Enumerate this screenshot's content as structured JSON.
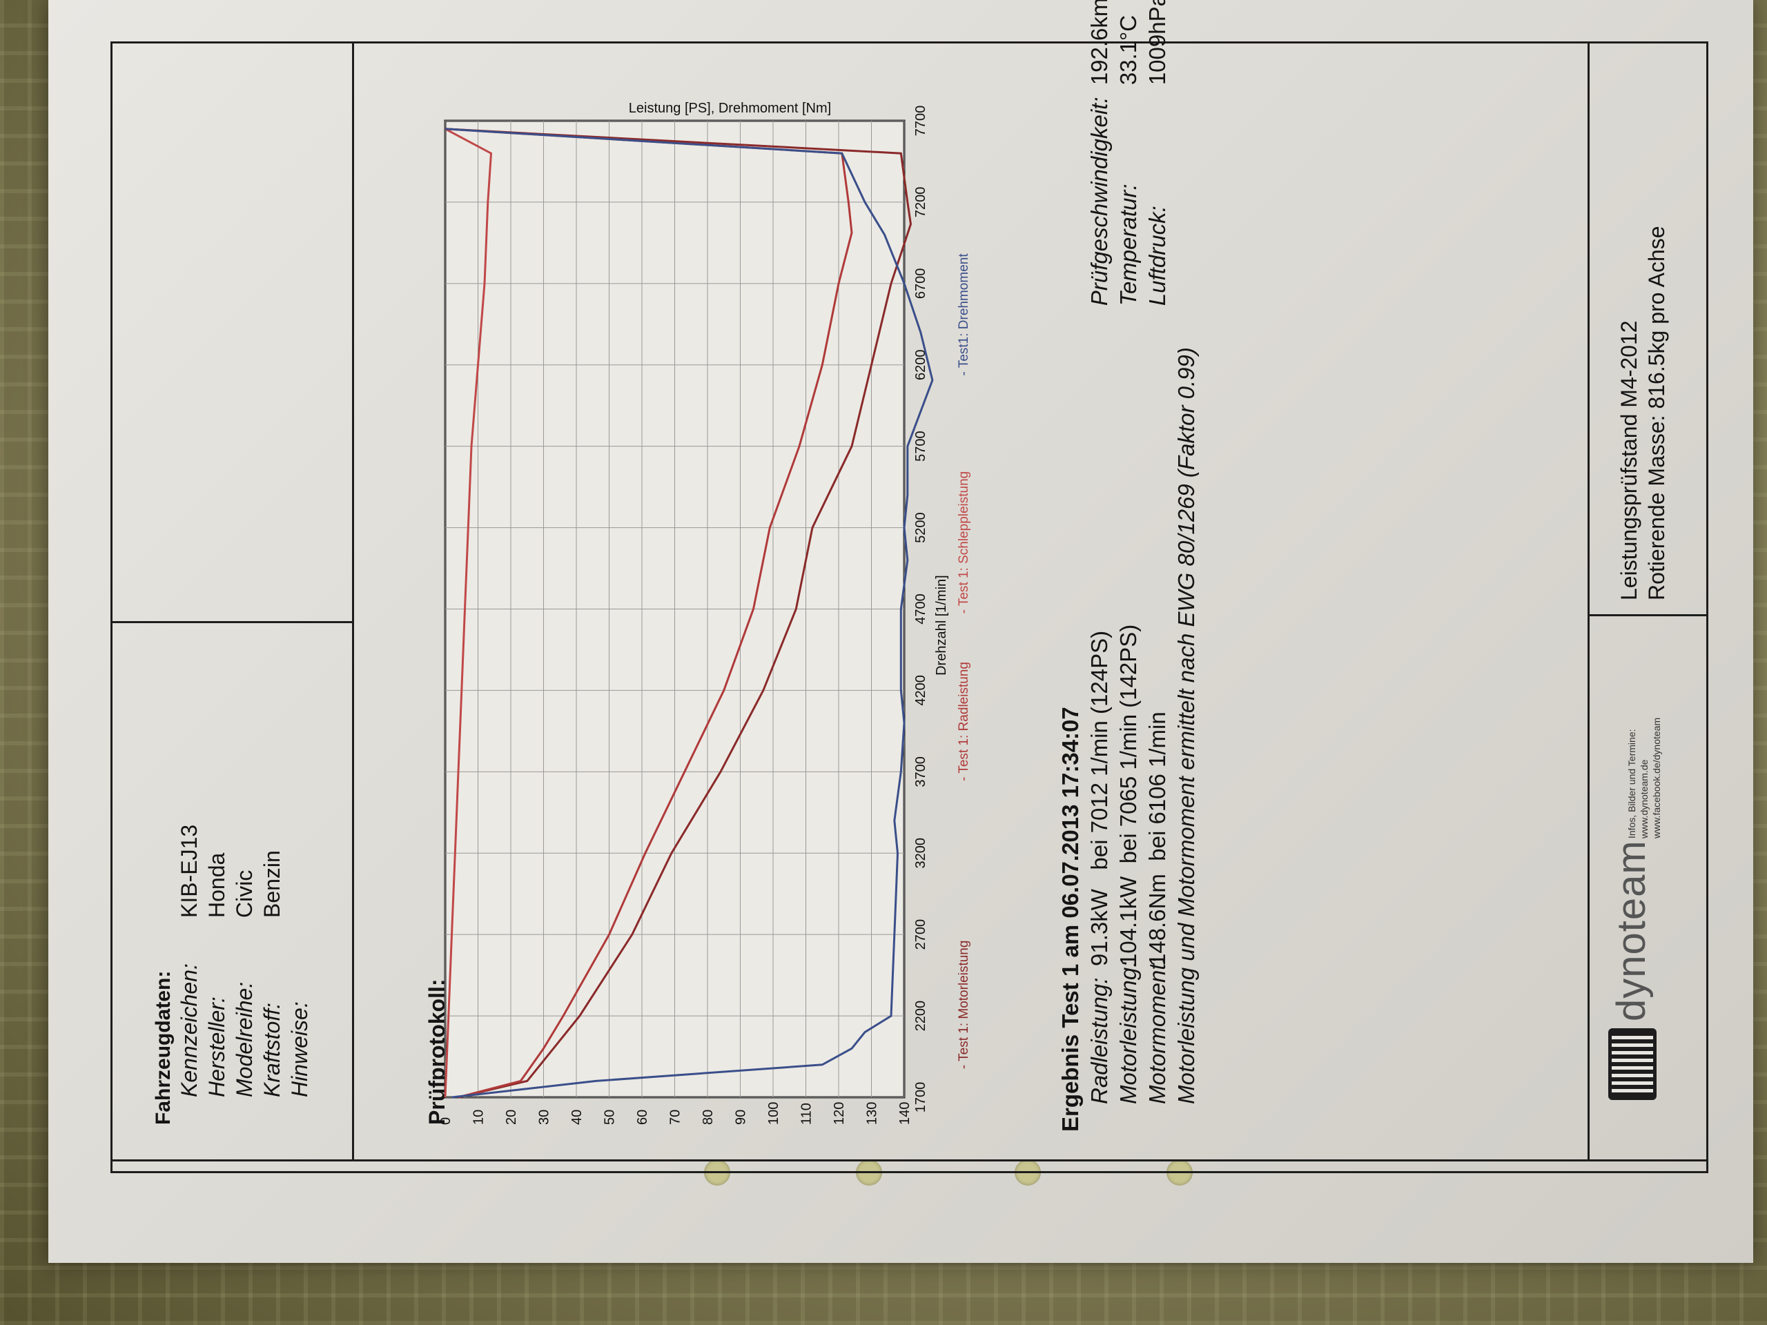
{
  "vehicle": {
    "heading": "Fahrzeugdaten:",
    "fields": [
      {
        "label": "Kennzeichen:",
        "value": "KIB-EJ13"
      },
      {
        "label": "Hersteller:",
        "value": "Honda"
      },
      {
        "label": "Modelreihe:",
        "value": "Civic"
      },
      {
        "label": "Kraftstoff:",
        "value": "Benzin"
      },
      {
        "label": "Hinweise:",
        "value": ""
      }
    ]
  },
  "protocol": {
    "heading": "Prüfprotokoll:"
  },
  "chart_data": {
    "type": "line",
    "ylabel": "Leistung [PS], Drehmoment [Nm]",
    "xlabel": "Drehzahl [1/min]",
    "xlim": [
      1700,
      7700
    ],
    "ylim": [
      0,
      140
    ],
    "x_ticks": [
      "1700",
      "2200",
      "2700",
      "3200",
      "3700",
      "4200",
      "4700",
      "5200",
      "5700",
      "6200",
      "6700",
      "7200",
      "7700"
    ],
    "y_ticks": [
      "0",
      "10",
      "20",
      "30",
      "40",
      "50",
      "60",
      "70",
      "80",
      "90",
      "100",
      "110",
      "120",
      "130",
      "140"
    ],
    "grid": true,
    "legend_position": "bottom",
    "series": [
      {
        "name": "- Test 1: Motorleistung",
        "color": "#8a2a2a",
        "x": [
          1700,
          1800,
          2000,
          2200,
          2700,
          3200,
          3700,
          4200,
          4700,
          5200,
          5700,
          6200,
          6700,
          7065,
          7200,
          7500,
          7650
        ],
        "y": [
          4,
          25,
          33,
          41,
          57,
          69,
          84,
          97,
          107,
          112,
          124,
          130,
          136,
          142,
          141,
          139,
          0
        ]
      },
      {
        "name": "- Test 1: Radleistung",
        "color": "#b03a3a",
        "x": [
          1700,
          1800,
          2000,
          2200,
          2700,
          3200,
          3700,
          4200,
          4700,
          5200,
          5700,
          6200,
          6700,
          7012,
          7200,
          7500,
          7650
        ],
        "y": [
          4,
          23,
          30,
          36,
          50,
          61,
          73,
          85,
          94,
          99,
          108,
          115,
          120,
          124,
          123,
          121,
          0
        ]
      },
      {
        "name": "- Test 1: Schleppleistung",
        "color": "#c04848",
        "x": [
          1700,
          2200,
          2700,
          3200,
          3700,
          4200,
          4700,
          5200,
          5700,
          6200,
          6700,
          7200,
          7500,
          7650
        ],
        "y": [
          0,
          1,
          2,
          3,
          4,
          5,
          6,
          7,
          8,
          10,
          12,
          13,
          14,
          0
        ]
      },
      {
        "name": "- Test1: Drehmoment",
        "color": "#3a4f8a",
        "x": [
          1700,
          1800,
          1900,
          2000,
          2100,
          2200,
          2700,
          3200,
          3400,
          3700,
          4000,
          4200,
          4700,
          5000,
          5200,
          5400,
          5700,
          6106,
          6400,
          6700,
          7000,
          7200,
          7500,
          7650
        ],
        "y": [
          2,
          46,
          115,
          124,
          128,
          136,
          137,
          138,
          137,
          139,
          140,
          139,
          139,
          141,
          140,
          141,
          141,
          148.6,
          145,
          140,
          134,
          128,
          121,
          0
        ]
      }
    ]
  },
  "results": {
    "heading": "Ergebnis Test 1 am 06.07.2013 17:34:07",
    "rows": [
      {
        "label": "Radleistung:",
        "value": "91.3kW   bei 7012 1/min (124PS)"
      },
      {
        "label": "Motorleistung:",
        "value": "104.1kW  bei 7065 1/min (142PS)"
      },
      {
        "label": "Motormoment:",
        "value": "148.6Nm  bei 6106 1/min"
      }
    ],
    "footnote": "Motorleistung und Motormoment ermittelt nach EWG 80/1269 (Faktor 0.99)",
    "conditions": [
      {
        "label": "Prüfgeschwindigkeit:",
        "value": "192.6km/h"
      },
      {
        "label": "Temperatur:",
        "value": "33.1°C"
      },
      {
        "label": "Luftdruck:",
        "value": "1009hPa"
      }
    ]
  },
  "footer": {
    "brand": "dynoteam",
    "info_lines": [
      "Infos, Bilder und Termine:",
      "www.dynoteam.de",
      "www.facebook.de/dynoteam"
    ],
    "stand": "Leistungsprüfstand M4-2012",
    "mass": "Rotierende Masse: 816.5kg pro Achse"
  }
}
